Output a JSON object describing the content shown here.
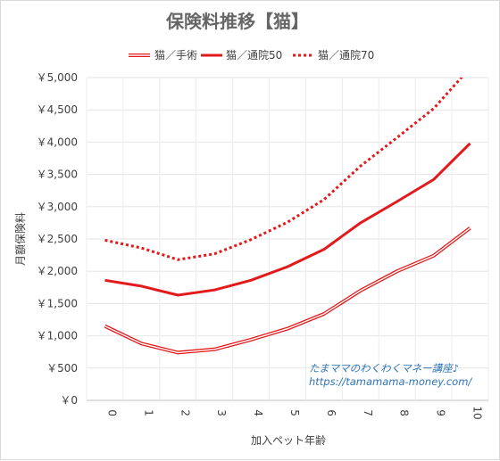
{
  "chart_data": {
    "type": "line",
    "title": "保険料推移【猫】",
    "xlabel": "加入ペット年齢",
    "ylabel": "月額保険料",
    "categories": [
      "0",
      "1",
      "2",
      "3",
      "4",
      "5",
      "6",
      "7",
      "8",
      "9",
      "10"
    ],
    "y_tick_labels": [
      "￥0",
      "￥500",
      "￥1,000",
      "￥1,500",
      "￥2,000",
      "￥2,500",
      "￥3,000",
      "￥3,500",
      "￥4,000",
      "￥4,500",
      "￥5,000"
    ],
    "ylim": [
      0,
      5000
    ],
    "grid": true,
    "legend_position": "top",
    "series": [
      {
        "name": "猫／手術",
        "style": "double",
        "color": "#e31a1c",
        "values": [
          1150,
          880,
          740,
          790,
          940,
          1110,
          1340,
          1700,
          2000,
          2240,
          2670
        ]
      },
      {
        "name": "猫／通院50",
        "style": "solid",
        "color": "#e31a1c",
        "values": [
          1860,
          1770,
          1630,
          1710,
          1860,
          2070,
          2340,
          2750,
          3080,
          3420,
          3980
        ]
      },
      {
        "name": "猫／通院70",
        "style": "dotted",
        "color": "#e31a1c",
        "values": [
          2480,
          2360,
          2180,
          2270,
          2490,
          2760,
          3110,
          3630,
          4070,
          4520,
          5150
        ]
      }
    ]
  },
  "watermark": {
    "line1": "たまママのわくわくマネー講座♪",
    "line2": "https://tamamama-money.com/"
  }
}
